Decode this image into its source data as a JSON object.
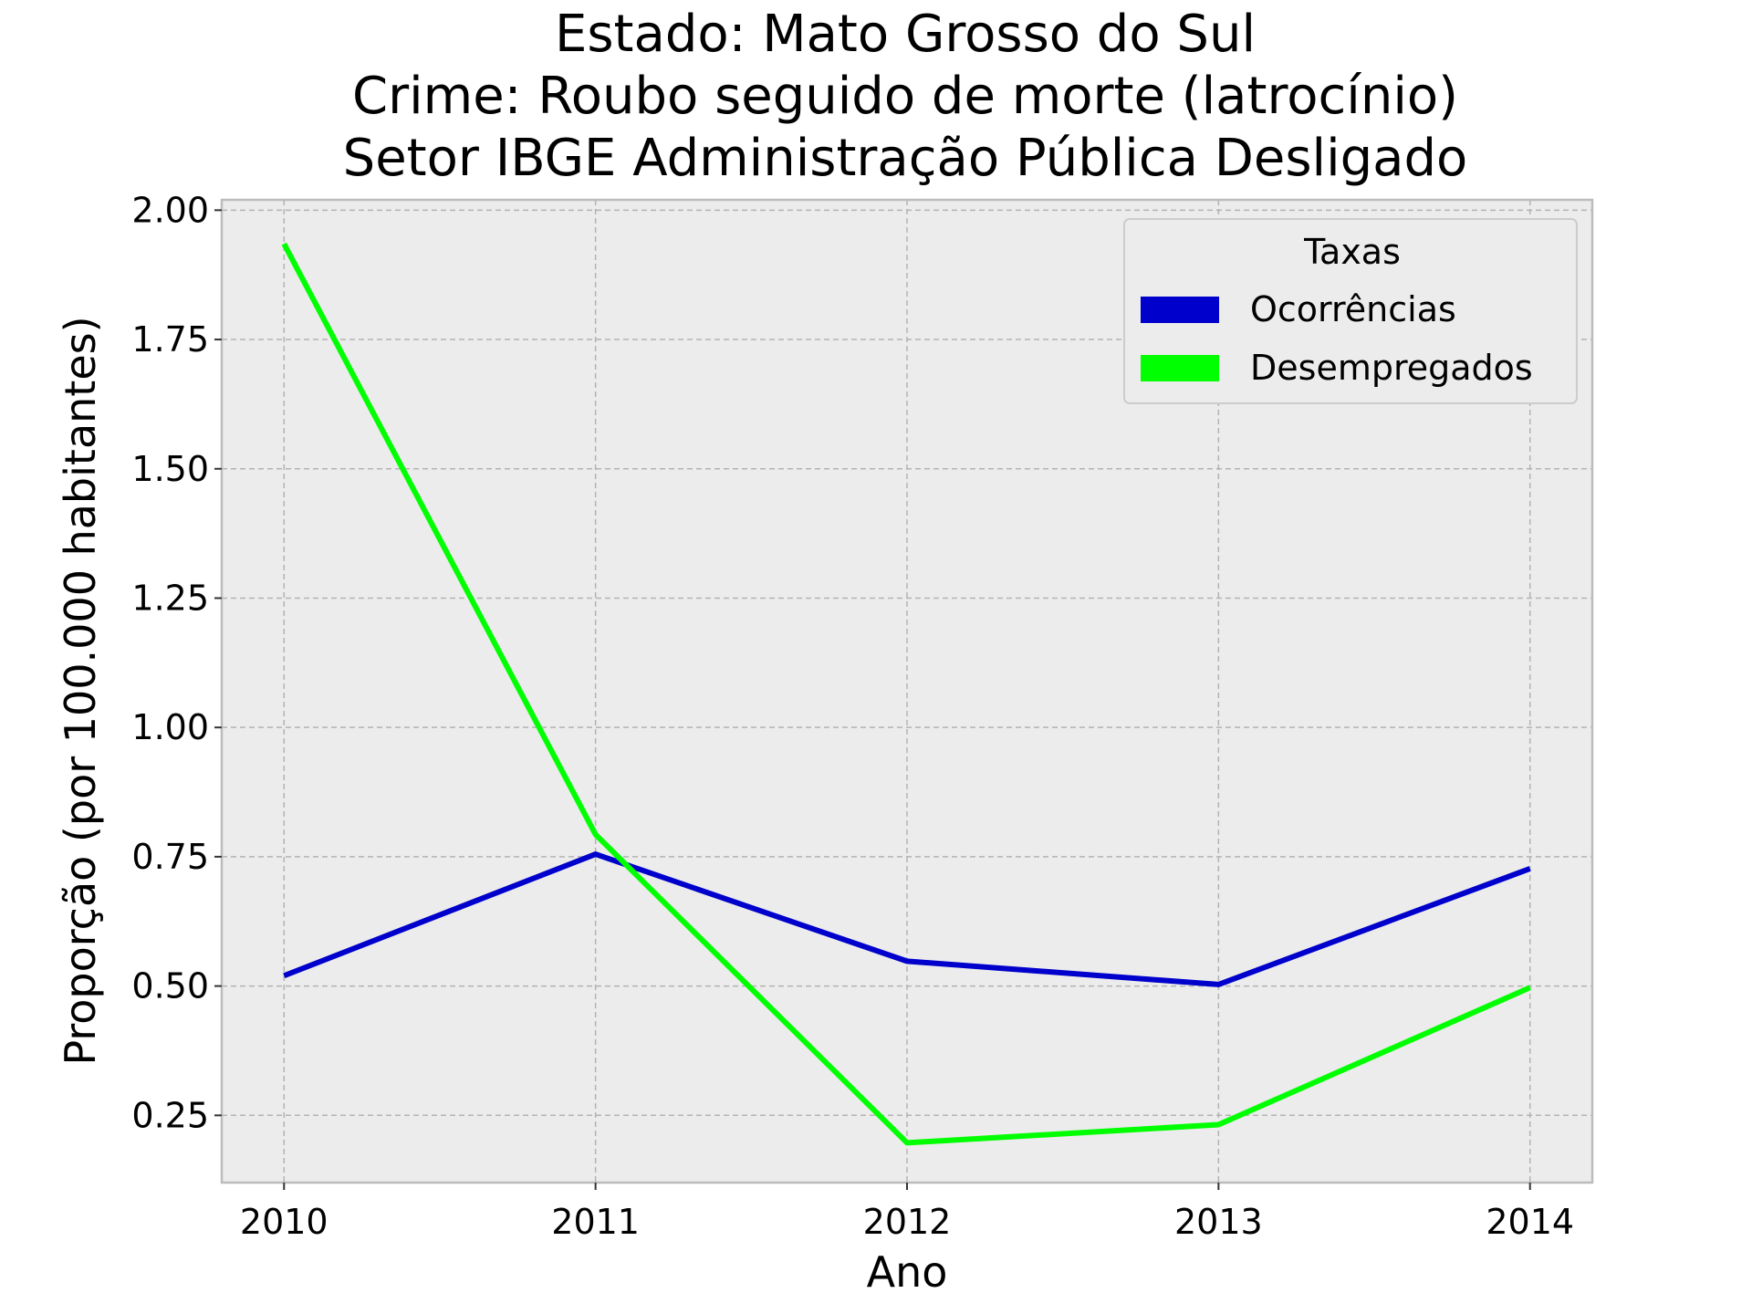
{
  "chart_data": {
    "type": "line",
    "title_lines": [
      "Estado: Mato Grosso do Sul",
      "Crime: Roubo seguido de morte (latrocínio)",
      "Setor IBGE  Administração Pública   Desligado"
    ],
    "xlabel": "Ano",
    "ylabel": "Proporção (por 100.000 habitantes)",
    "x": [
      "2010",
      "2011",
      "2012",
      "2013",
      "2014"
    ],
    "xlim": [
      2009.8,
      2014.2
    ],
    "ylim": [
      0.12,
      2.02
    ],
    "y_ticks": [
      "0.25",
      "0.50",
      "0.75",
      "1.00",
      "1.25",
      "1.50",
      "1.75",
      "2.00"
    ],
    "grid": true,
    "legend": {
      "title": "Taxas",
      "placement": "top-right"
    },
    "series": [
      {
        "name": "Ocorrências",
        "color": "#0000cc",
        "values": [
          0.52,
          0.755,
          0.548,
          0.503,
          0.727
        ]
      },
      {
        "name": "Desempregados",
        "color": "#00ff00",
        "values": [
          1.935,
          0.793,
          0.197,
          0.232,
          0.497
        ]
      }
    ],
    "colors": {
      "plot_background": "#ececec",
      "frame": "#bcbcbc"
    }
  }
}
